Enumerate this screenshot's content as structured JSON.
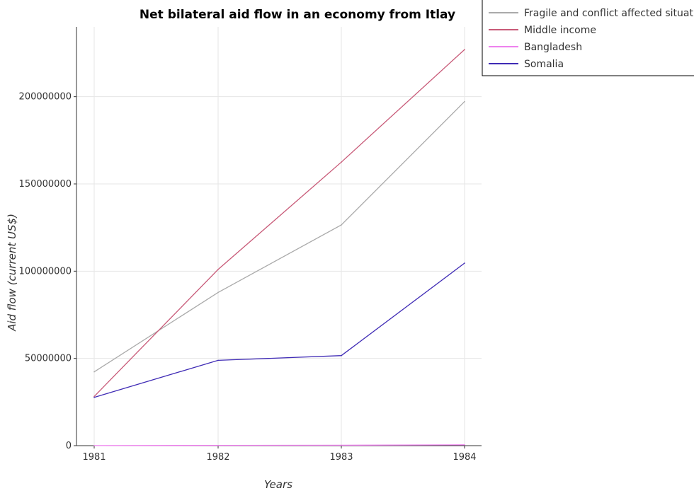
{
  "chart_data": {
    "type": "line",
    "title": "Net bilateral aid flow in an economy from Itlay",
    "xlabel": "Years",
    "ylabel": "Aid flow (current US$)",
    "x": [
      "1981",
      "1982",
      "1983",
      "1984"
    ],
    "ylim": [
      0,
      240000000
    ],
    "yticks": [
      0,
      50000000,
      100000000,
      150000000,
      200000000
    ],
    "ytick_labels": [
      "0",
      "50000000",
      "100000000",
      "150000000",
      "200000000"
    ],
    "grid": true,
    "legend_position": "top-right",
    "series": [
      {
        "name": "Fragile and conflict affected situations",
        "color": "#aaaaaa",
        "values": [
          42300000,
          87800000,
          126500000,
          197200000
        ]
      },
      {
        "name": "Middle income",
        "color": "#c85a78",
        "values": [
          28200000,
          101000000,
          162500000,
          227000000
        ]
      },
      {
        "name": "Bangladesh",
        "color": "#ee82ee",
        "values": [
          50000,
          150000,
          250000,
          500000
        ]
      },
      {
        "name": "Somalia",
        "color": "#3f2bb5",
        "values": [
          27700000,
          48900000,
          51600000,
          104600000
        ]
      }
    ]
  }
}
